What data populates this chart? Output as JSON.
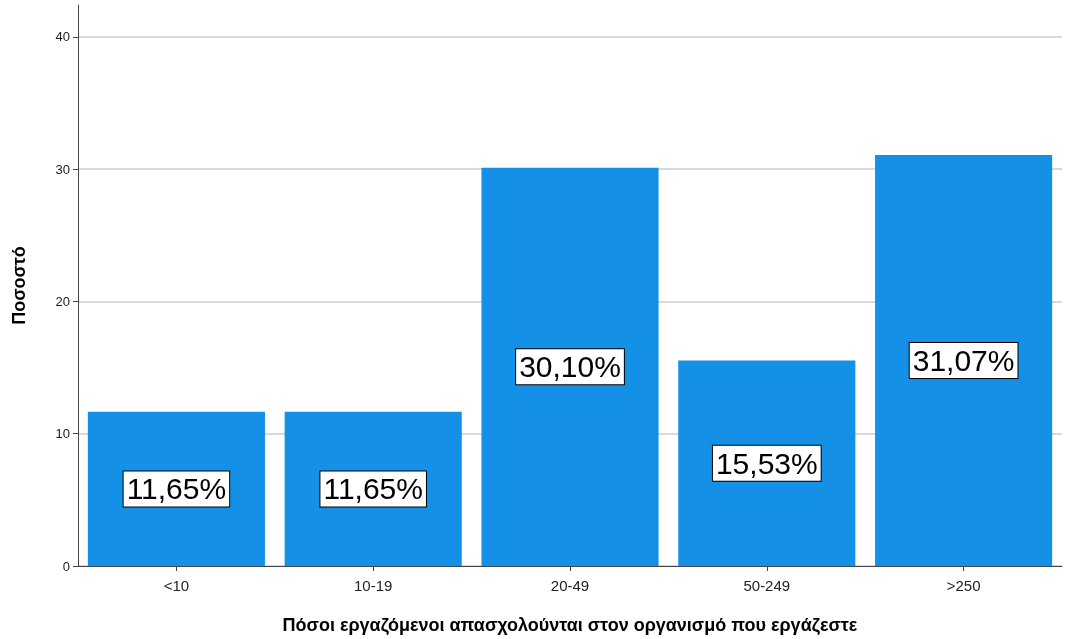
{
  "chart_data": {
    "type": "bar",
    "xlabel": "Πόσοι εργαζόμενοι απασχολούνται στον οργανισμό που εργάζεστε",
    "ylabel": "Ποσοστό",
    "categories": [
      "<10",
      "10-19",
      "20-49",
      "50-249",
      ">250"
    ],
    "values": [
      11.65,
      11.65,
      30.1,
      15.53,
      31.07
    ],
    "value_labels": [
      "11,65%",
      "11,65%",
      "30,10%",
      "15,53%",
      "31,07%"
    ],
    "color": "#1490e6",
    "ylim": [
      0,
      42.4
    ],
    "yticks": [
      0,
      10,
      20,
      30,
      40
    ],
    "grid": "y"
  }
}
